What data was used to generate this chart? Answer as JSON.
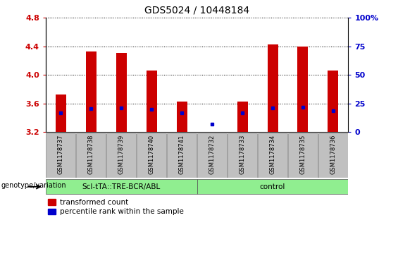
{
  "title": "GDS5024 / 10448184",
  "samples": [
    "GSM1178737",
    "GSM1178738",
    "GSM1178739",
    "GSM1178740",
    "GSM1178741",
    "GSM1178732",
    "GSM1178733",
    "GSM1178734",
    "GSM1178735",
    "GSM1178736"
  ],
  "red_values": [
    3.72,
    4.33,
    4.31,
    4.06,
    3.63,
    3.2,
    3.63,
    4.43,
    4.4,
    4.06
  ],
  "blue_values": [
    3.47,
    3.53,
    3.54,
    3.52,
    3.47,
    3.31,
    3.47,
    3.54,
    3.55,
    3.5
  ],
  "ymin": 3.2,
  "ymax": 4.8,
  "y_ticks_left": [
    3.2,
    3.6,
    4.0,
    4.4,
    4.8
  ],
  "y_ticks_right_labels": [
    "0",
    "25",
    "50",
    "75",
    "100%"
  ],
  "y_ticks_right_pct": [
    0,
    25,
    50,
    75,
    100
  ],
  "base": 3.2,
  "group1_label": "Scl-tTA::TRE-BCR/ABL",
  "group1_count": 5,
  "group2_label": "control",
  "group2_count": 5,
  "genotype_label": "genotype/variation",
  "legend_red": "transformed count",
  "legend_blue": "percentile rank within the sample",
  "bar_color": "#cc0000",
  "dot_color": "#0000cc",
  "sample_bg_color": "#c0c0c0",
  "group_bg_color": "#90ee90",
  "plot_bg": "#ffffff",
  "title_color": "#000000",
  "left_tick_color": "#cc0000",
  "right_tick_color": "#0000cc",
  "bar_width": 0.35
}
